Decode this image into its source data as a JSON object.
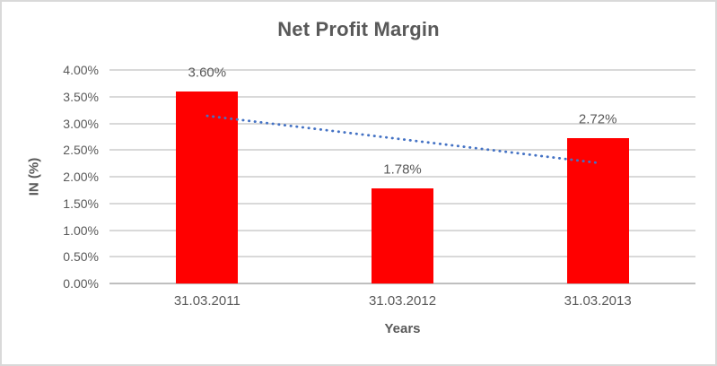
{
  "chart_data": {
    "type": "bar",
    "title": "Net Profit Margin",
    "xlabel": "Years",
    "ylabel": "IN (%)",
    "categories": [
      "31.03.2011",
      "31.03.2012",
      "31.03.2013"
    ],
    "values": [
      3.6,
      1.78,
      2.72
    ],
    "data_labels": [
      "3.60%",
      "1.78%",
      "2.72%"
    ],
    "ylim": [
      0,
      4
    ],
    "ytick_labels": [
      "0.00%",
      "0.50%",
      "1.00%",
      "1.50%",
      "2.00%",
      "2.50%",
      "3.00%",
      "3.50%",
      "4.00%"
    ],
    "grid": true,
    "legend": "none",
    "bar_color": "#FF0000",
    "text_color": "#595959",
    "gridline_color": "#D9D9D9",
    "axis_line_color": "#BFBFBF",
    "trendline": {
      "type": "linear",
      "style": "dotted",
      "color": "#4472C4",
      "start_value": 3.14,
      "end_value": 2.26
    }
  }
}
